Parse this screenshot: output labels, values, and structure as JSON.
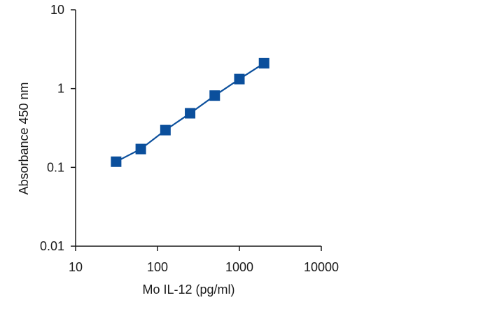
{
  "chart_data": {
    "type": "line",
    "title": "",
    "xlabel": "Mo IL-12 (pg/ml)",
    "ylabel": "Absorbance 450 nm",
    "x_scale": "log",
    "y_scale": "log",
    "xlim": [
      10,
      10000
    ],
    "ylim": [
      0.01,
      10
    ],
    "x_ticks": [
      "10",
      "100",
      "1000",
      "10000"
    ],
    "y_ticks": [
      "0.01",
      "0.1",
      "1",
      "10"
    ],
    "grid": false,
    "legend": "none",
    "series": [
      {
        "marker": "square",
        "color": "#0b4f9c",
        "x": [
          31.25,
          62.5,
          125,
          250,
          500,
          1000,
          2000
        ],
        "y": [
          0.118,
          0.171,
          0.297,
          0.486,
          0.815,
          1.32,
          2.1
        ]
      }
    ]
  }
}
